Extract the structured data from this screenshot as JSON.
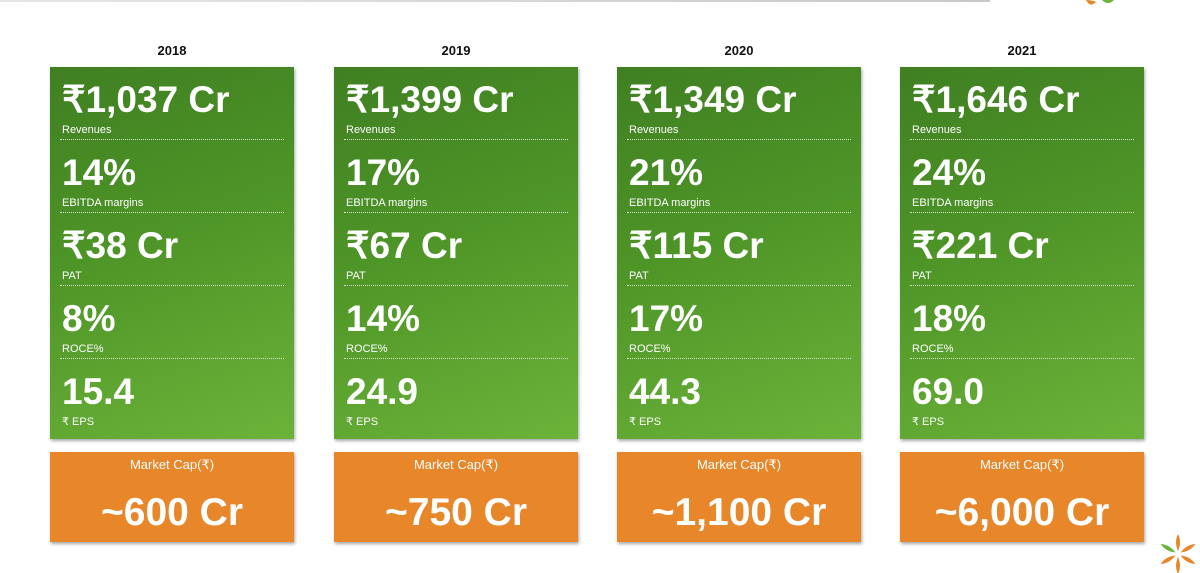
{
  "columns": [
    {
      "year": "2018",
      "metrics": [
        {
          "value": "₹1,037 Cr",
          "label": "Revenues"
        },
        {
          "value": "14%",
          "label": "EBITDA margins"
        },
        {
          "value": "₹38 Cr",
          "label": "PAT"
        },
        {
          "value": "8%",
          "label": "ROCE%"
        },
        {
          "value": "15.4",
          "label": "₹ EPS"
        }
      ],
      "market_cap": {
        "label": "Market Cap(₹)",
        "value": "~600 Cr"
      }
    },
    {
      "year": "2019",
      "metrics": [
        {
          "value": "₹1,399 Cr",
          "label": "Revenues"
        },
        {
          "value": "17%",
          "label": "EBITDA margins"
        },
        {
          "value": "₹67 Cr",
          "label": "PAT"
        },
        {
          "value": "14%",
          "label": "ROCE%"
        },
        {
          "value": "24.9",
          "label": "₹ EPS"
        }
      ],
      "market_cap": {
        "label": "Market Cap(₹)",
        "value": "~750 Cr"
      }
    },
    {
      "year": "2020",
      "metrics": [
        {
          "value": "₹1,349 Cr",
          "label": "Revenues"
        },
        {
          "value": "21%",
          "label": "EBITDA margins"
        },
        {
          "value": "₹115 Cr",
          "label": "PAT"
        },
        {
          "value": "17%",
          "label": "ROCE%"
        },
        {
          "value": "44.3",
          "label": "₹ EPS"
        }
      ],
      "market_cap": {
        "label": "Market Cap(₹)",
        "value": "~1,100 Cr"
      }
    },
    {
      "year": "2021",
      "metrics": [
        {
          "value": "₹1,646 Cr",
          "label": "Revenues"
        },
        {
          "value": "24%",
          "label": "EBITDA margins"
        },
        {
          "value": "₹221 Cr",
          "label": "PAT"
        },
        {
          "value": "18%",
          "label": "ROCE%"
        },
        {
          "value": "69.0",
          "label": "₹ EPS"
        }
      ],
      "market_cap": {
        "label": "Market Cap(₹)",
        "value": "~6,000 Cr"
      }
    }
  ],
  "colors": {
    "green_dark": "#3f7f22",
    "green_light": "#6cb33a",
    "orange": "#e8862a",
    "logo_green": "#6cb33a",
    "logo_orange": "#e8862a"
  },
  "icons": {
    "corner_top": "leaf-logo-icon",
    "corner_bottom": "flower-logo-icon"
  }
}
